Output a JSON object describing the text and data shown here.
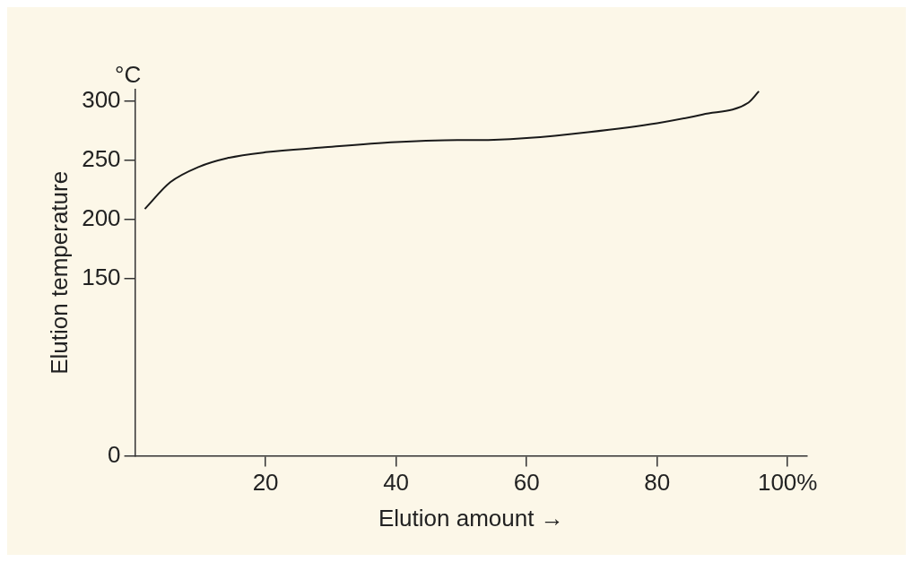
{
  "chart_data": {
    "type": "line",
    "xlabel": "Elution amount →",
    "ylabel": "Elution temperature",
    "annotations": [
      "°C"
    ],
    "x": [
      1.5,
      5.4,
      9.8,
      14.1,
      20,
      28.7,
      40,
      46,
      55,
      60,
      69.4,
      80,
      87,
      94,
      95.6
    ],
    "series": [
      {
        "color": "#1a1a1a",
        "values": [
          209,
          231.6,
          244.7,
          252,
          257,
          261,
          265.6,
          267,
          267.6,
          269,
          274,
          281.6,
          289,
          299,
          308.6
        ]
      }
    ],
    "xlim": [
      0,
      103
    ],
    "xticks": [
      20,
      40,
      60,
      80,
      {
        "value": 100,
        "label": "100%"
      }
    ],
    "ylim": [
      0,
      310
    ],
    "yticks": [
      0,
      150,
      200,
      250,
      300
    ],
    "grid": false,
    "legend": false,
    "marker": "none",
    "line_style": "solid"
  }
}
